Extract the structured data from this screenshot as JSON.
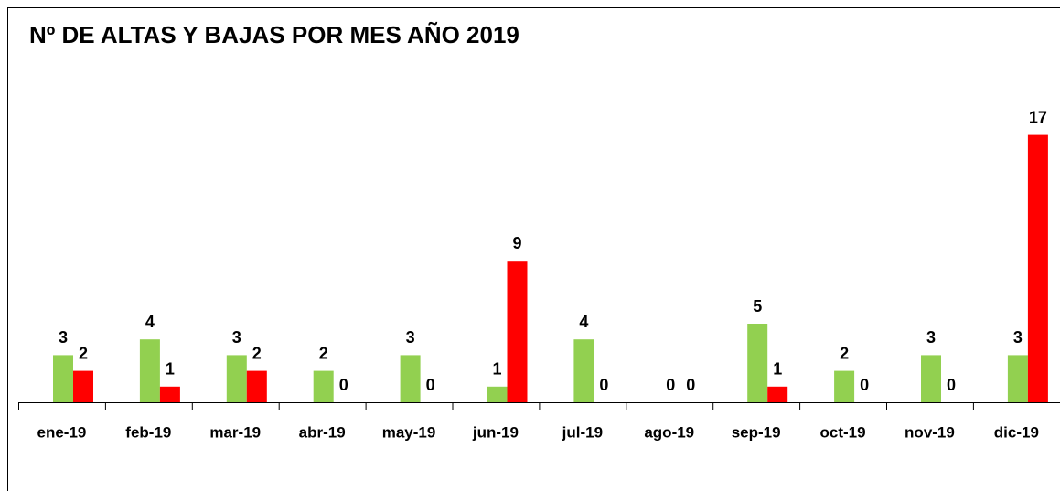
{
  "chart_data": {
    "type": "bar",
    "title": "Nº DE ALTAS Y BAJAS POR MES AÑO 2019",
    "categories": [
      "ene-19",
      "feb-19",
      "mar-19",
      "abr-19",
      "may-19",
      "jun-19",
      "jul-19",
      "ago-19",
      "sep-19",
      "oct-19",
      "nov-19",
      "dic-19"
    ],
    "series": [
      {
        "color": "#92d050",
        "values": [
          3,
          4,
          3,
          2,
          3,
          1,
          4,
          0,
          5,
          2,
          3,
          3
        ]
      },
      {
        "color": "#ff0000",
        "values": [
          2,
          1,
          2,
          0,
          0,
          9,
          0,
          0,
          1,
          0,
          0,
          17
        ]
      }
    ]
  }
}
